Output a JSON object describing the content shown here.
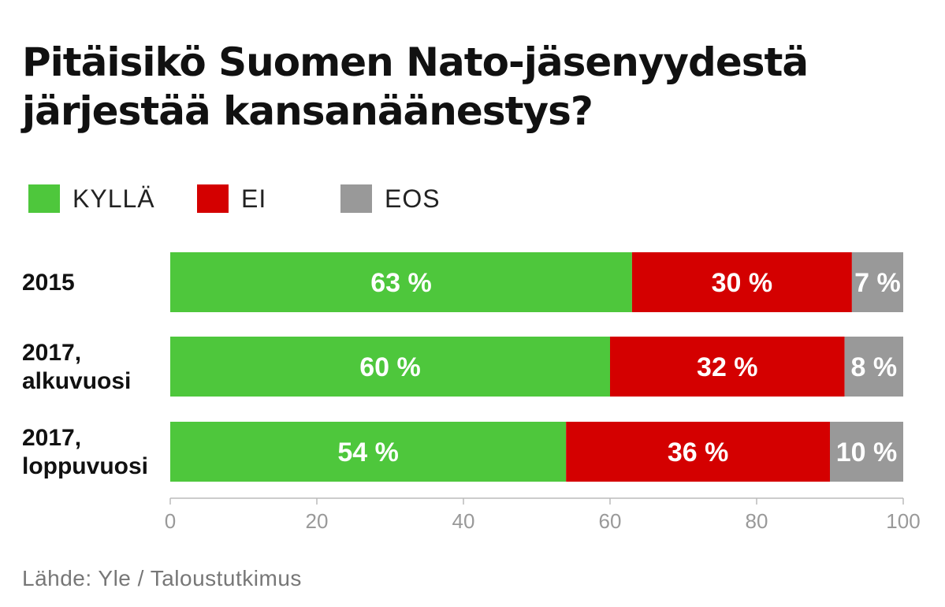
{
  "chart_data": {
    "type": "bar",
    "orientation": "horizontal",
    "stacked": true,
    "title_lines": [
      "Pitäisikö Suomen Nato-jäsenyydestä",
      "järjestää kansanäänestys?"
    ],
    "categories": [
      [
        "2015"
      ],
      [
        "2017,",
        "alkuvuosi"
      ],
      [
        "2017,",
        "loppuvuosi"
      ]
    ],
    "series": [
      {
        "name": "KYLLÄ",
        "color": "#4ec73c",
        "values": [
          63,
          60,
          54
        ],
        "labels": [
          "63 %",
          "60 %",
          "54 %"
        ]
      },
      {
        "name": "EI",
        "color": "#d40000",
        "values": [
          30,
          32,
          36
        ],
        "labels": [
          "30 %",
          "32 %",
          "36 %"
        ]
      },
      {
        "name": "EOS",
        "color": "#999999",
        "values": [
          7,
          8,
          10
        ],
        "labels": [
          "7 %",
          "8 %",
          "10 %"
        ]
      }
    ],
    "xlim": [
      0,
      100
    ],
    "xticks": [
      "0",
      "20",
      "40",
      "60",
      "80",
      "100"
    ],
    "legend_position": "top-left",
    "grid": false,
    "source": "Lähde: Yle / Taloustutkimus"
  }
}
